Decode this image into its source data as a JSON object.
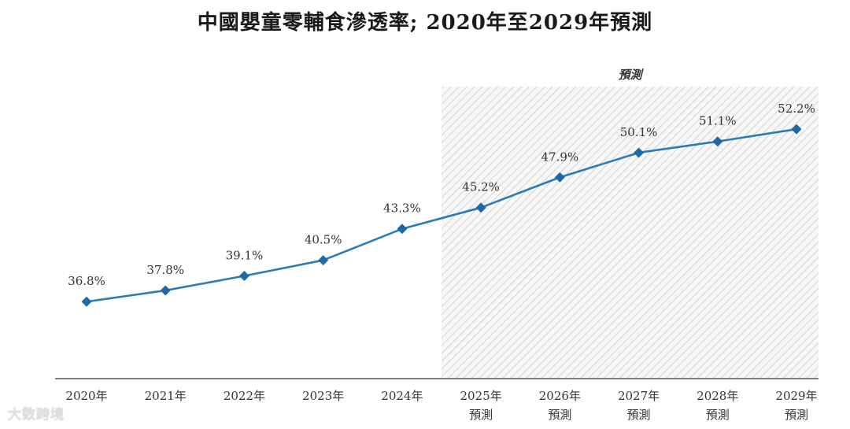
{
  "chart_data": {
    "type": "line",
    "title": "中國嬰童零輔食滲透率; 2020年至2029年預測",
    "categories": [
      "2020年",
      "2021年",
      "2022年",
      "2023年",
      "2024年",
      "2025年",
      "2026年",
      "2027年",
      "2028年",
      "2029年"
    ],
    "forecast_sublabels": [
      "",
      "",
      "",
      "",
      "",
      "預測",
      "預測",
      "預測",
      "預測",
      "預測"
    ],
    "series": [
      {
        "name": "滲透率",
        "values": [
          36.8,
          37.8,
          39.1,
          40.5,
          43.3,
          45.2,
          47.9,
          50.1,
          51.1,
          52.2
        ],
        "labels": [
          "36.8%",
          "37.8%",
          "39.1%",
          "40.5%",
          "43.3%",
          "45.2%",
          "47.9%",
          "50.1%",
          "51.1%",
          "52.2%"
        ]
      }
    ],
    "forecast_header": "預測",
    "forecast_start_index": 5,
    "ylim": [
      30,
      56
    ],
    "xlabel": "",
    "ylabel": "",
    "grid": false,
    "line_color": "#2b7bb4",
    "marker_color": "#1f6aa5",
    "shade_color": "#c8c8c8"
  },
  "watermark": "大数跨境"
}
